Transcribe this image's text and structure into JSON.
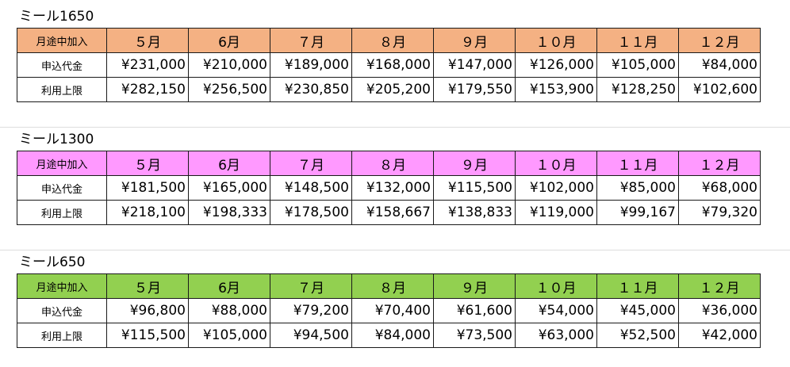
{
  "plans": [
    {
      "title": "ミール1650",
      "header_color": "#f4b183",
      "corner_label": "月途中加入",
      "months": [
        "５月",
        "6月",
        "７月",
        "８月",
        "９月",
        "１０月",
        "１１月",
        "１２月"
      ],
      "rows": [
        {
          "label": "申込代金",
          "values": [
            "¥231,000",
            "¥210,000",
            "¥189,000",
            "¥168,000",
            "¥147,000",
            "¥126,000",
            "¥105,000",
            "¥84,000"
          ]
        },
        {
          "label": "利用上限",
          "values": [
            "¥282,150",
            "¥256,500",
            "¥230,850",
            "¥205,200",
            "¥179,550",
            "¥153,900",
            "¥128,250",
            "¥102,600"
          ]
        }
      ]
    },
    {
      "title": "ミール1300",
      "header_color": "#ff99ff",
      "corner_label": "月途中加入",
      "months": [
        "５月",
        "6月",
        "７月",
        "８月",
        "９月",
        "１０月",
        "１１月",
        "１２月"
      ],
      "rows": [
        {
          "label": "申込代金",
          "values": [
            "¥181,500",
            "¥165,000",
            "¥148,500",
            "¥132,000",
            "¥115,500",
            "¥102,000",
            "¥85,000",
            "¥68,000"
          ]
        },
        {
          "label": "利用上限",
          "values": [
            "¥218,100",
            "¥198,333",
            "¥178,500",
            "¥158,667",
            "¥138,833",
            "¥119,000",
            "¥99,167",
            "¥79,320"
          ]
        }
      ]
    },
    {
      "title": "ミール650",
      "header_color": "#92d050",
      "corner_label": "月途中加入",
      "months": [
        "５月",
        "6月",
        "７月",
        "８月",
        "９月",
        "１０月",
        "１１月",
        "１２月"
      ],
      "rows": [
        {
          "label": "申込代金",
          "values": [
            "¥96,800",
            "¥88,000",
            "¥79,200",
            "¥70,400",
            "¥61,600",
            "¥54,000",
            "¥45,000",
            "¥36,000"
          ]
        },
        {
          "label": "利用上限",
          "values": [
            "¥115,500",
            "¥105,000",
            "¥94,500",
            "¥84,000",
            "¥73,500",
            "¥63,000",
            "¥52,500",
            "¥42,000"
          ]
        }
      ]
    }
  ]
}
